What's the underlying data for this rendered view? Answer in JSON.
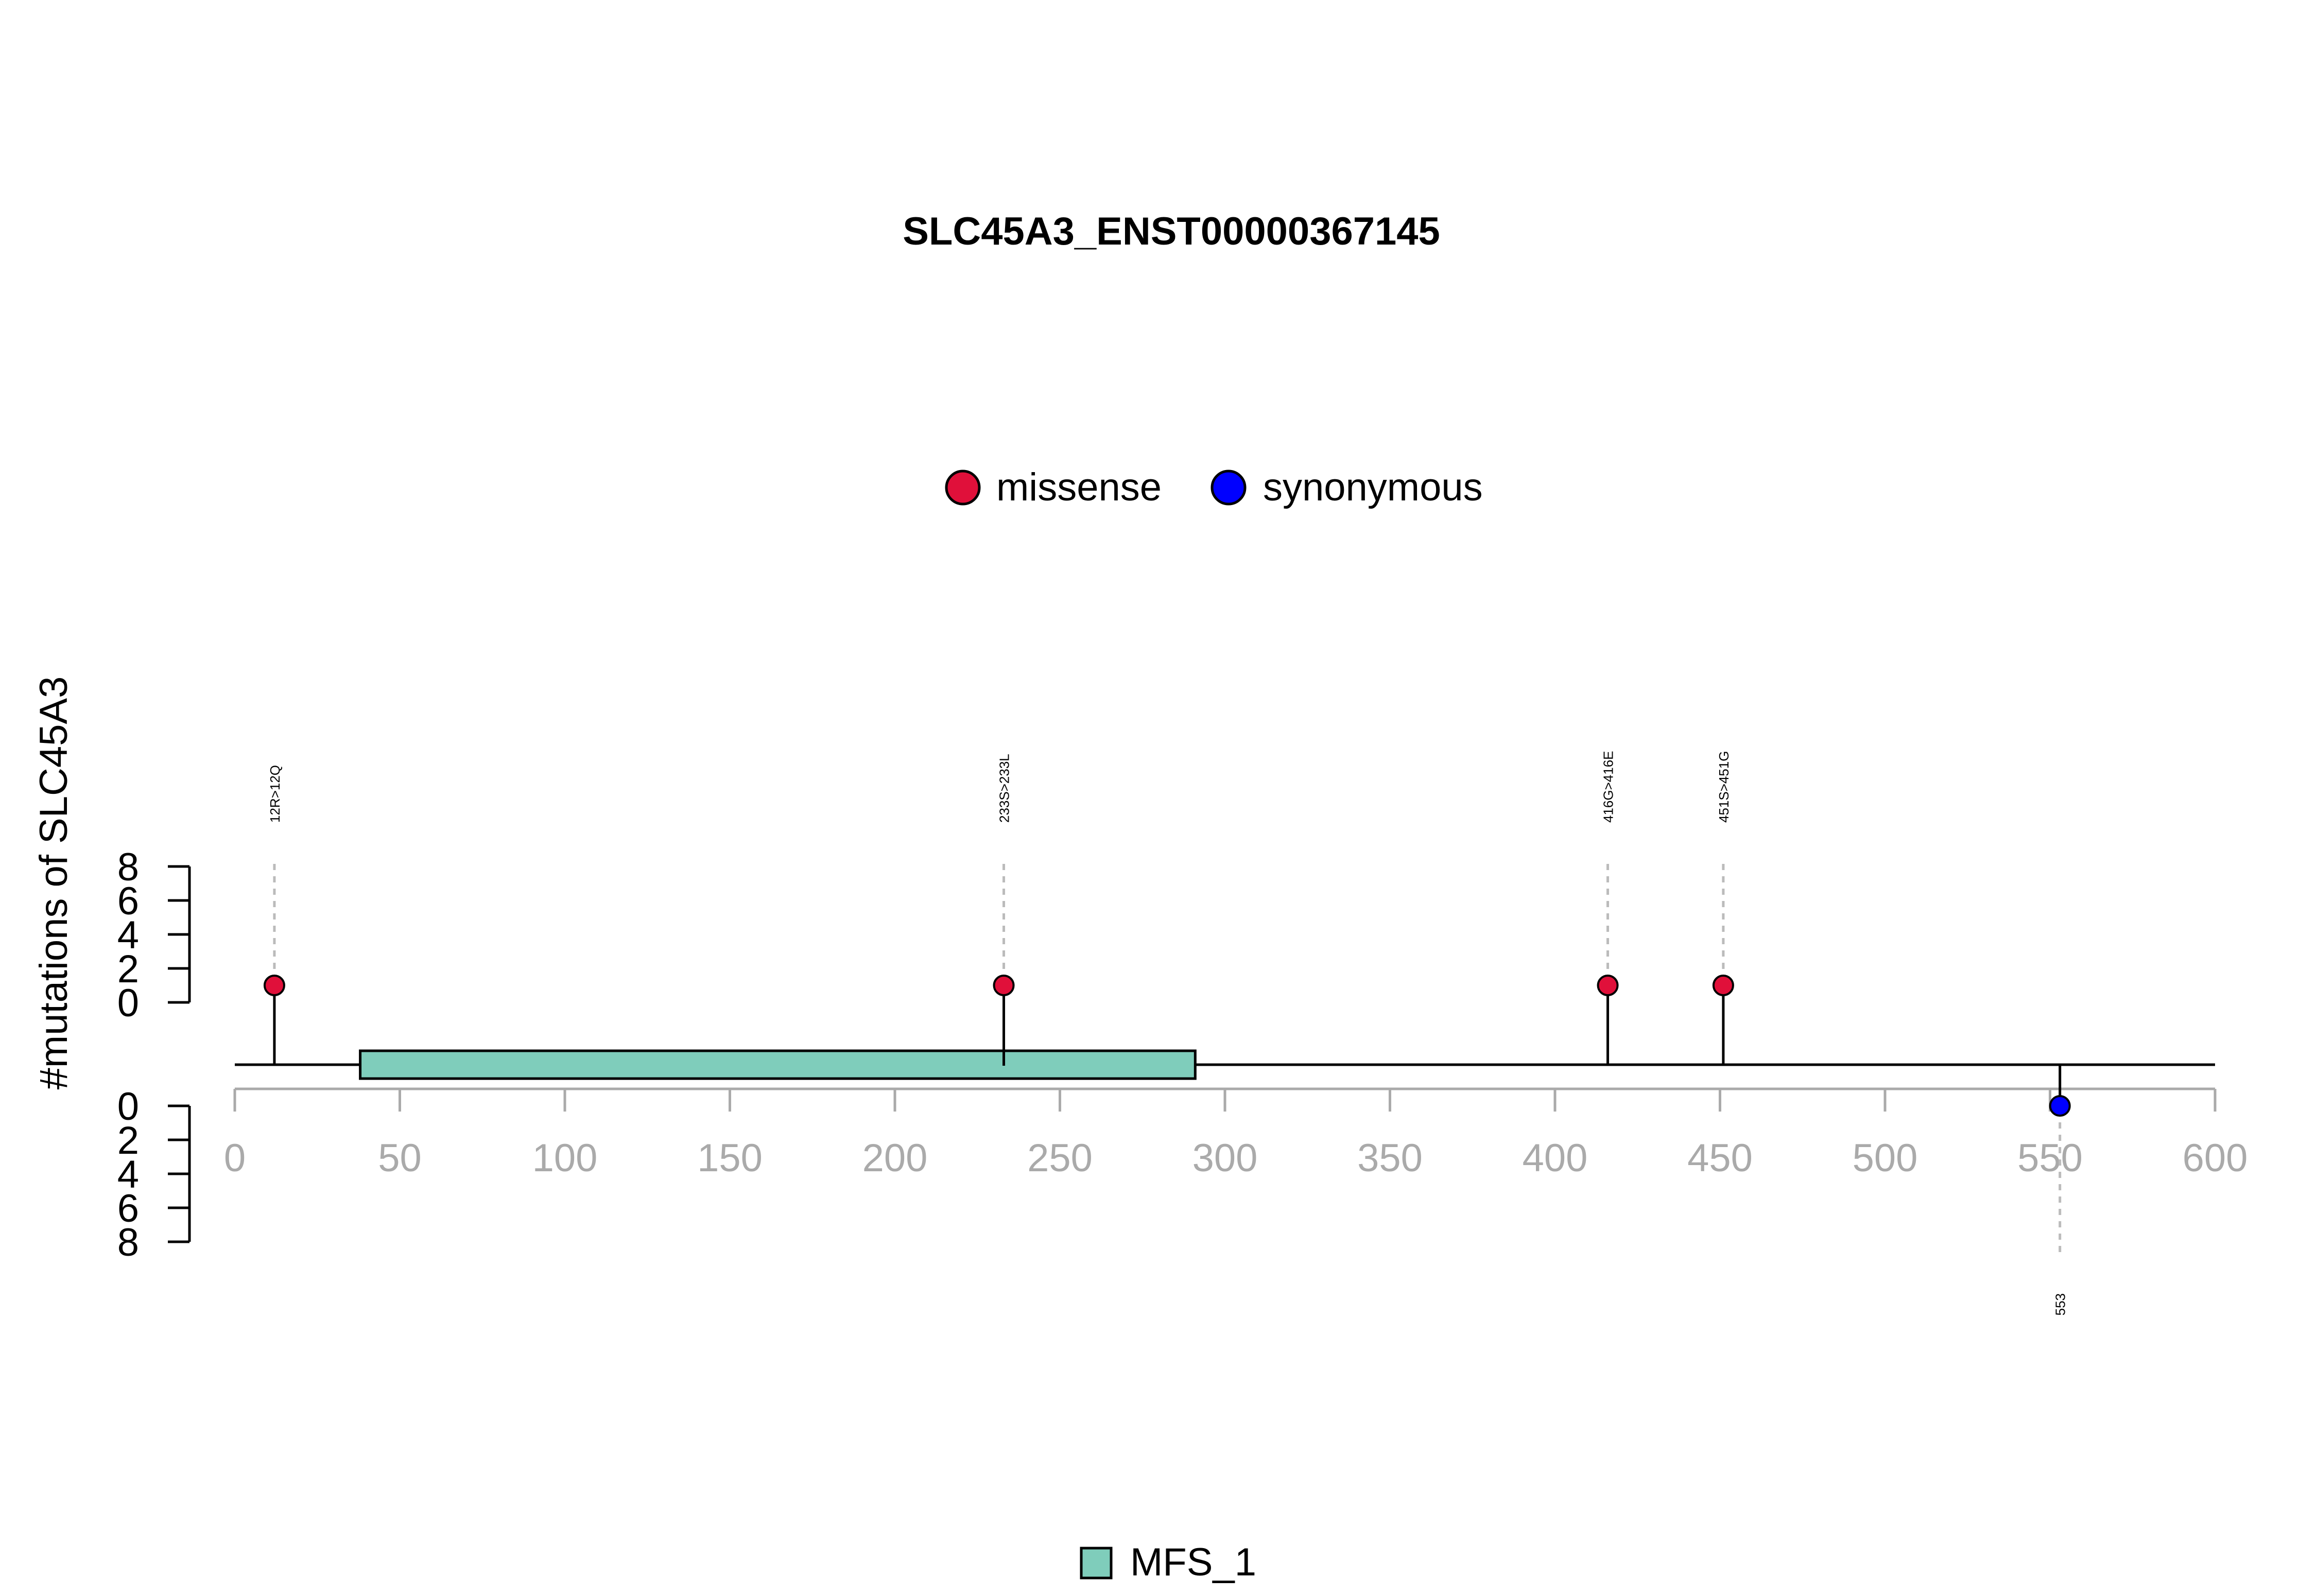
{
  "chart_data": {
    "type": "lollipop",
    "title": "SLC45A3_ENST00000367145",
    "ylabel": "#mutations of SLC45A3",
    "xlim": [
      0,
      600
    ],
    "xticks": [
      0,
      50,
      100,
      150,
      200,
      250,
      300,
      350,
      400,
      450,
      500,
      550,
      600
    ],
    "yticks": [
      0,
      2,
      4,
      6,
      8
    ],
    "legend": [
      {
        "name": "missense",
        "color": "#E0103A"
      },
      {
        "name": "synonymous",
        "color": "#0000FF"
      }
    ],
    "mutations": [
      {
        "position": 12,
        "label": "12R>12Q",
        "type": "missense",
        "count": 1
      },
      {
        "position": 233,
        "label": "233S>233L",
        "type": "missense",
        "count": 1
      },
      {
        "position": 416,
        "label": "416G>416E",
        "type": "missense",
        "count": 1
      },
      {
        "position": 451,
        "label": "451S>451G",
        "type": "missense",
        "count": 1
      },
      {
        "position": 553,
        "label": "553",
        "type": "synonymous",
        "count": 1
      }
    ],
    "domains": [
      {
        "name": "MFS_1",
        "start": 38,
        "end": 291,
        "color": "#7FCDBB"
      }
    ],
    "domain_legend": [
      {
        "name": "MFS_1",
        "color": "#7FCDBB"
      }
    ]
  }
}
